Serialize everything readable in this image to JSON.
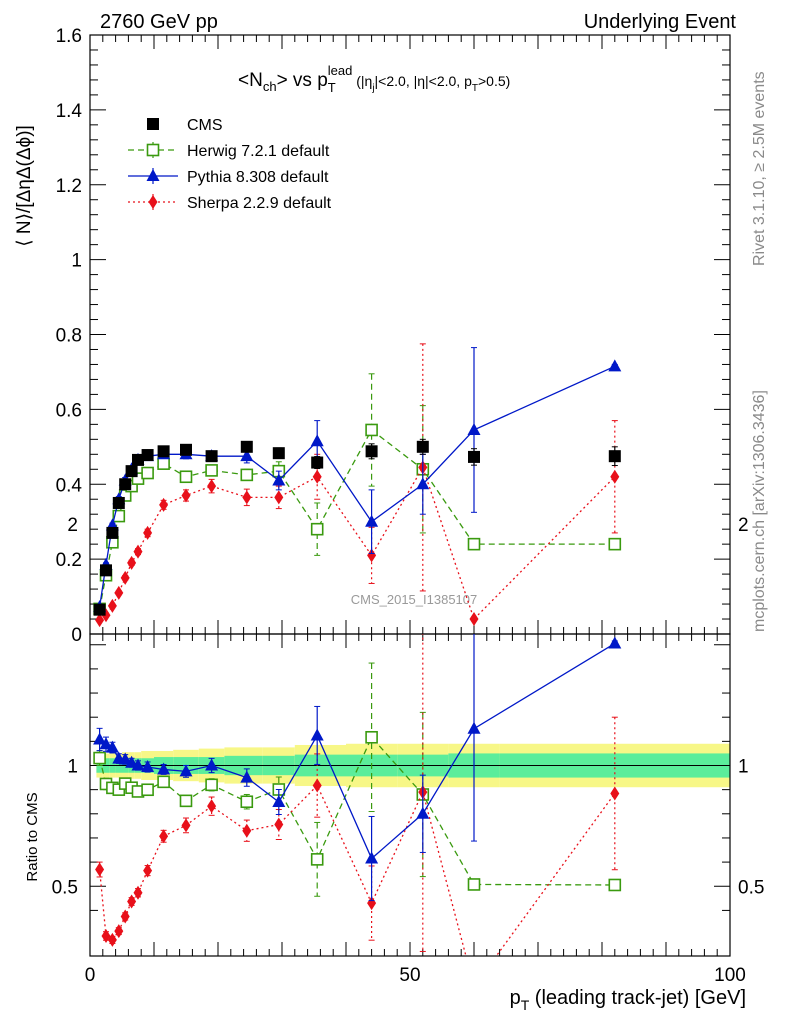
{
  "header": {
    "left": "2760 GeV pp",
    "right": "Underlying Event",
    "side_top": "Rivet 3.1.10, ≥ 2.5M events",
    "side_bottom": "mcplots.cern.ch [arXiv:1306.3436]",
    "watermark": "CMS_2015_I1385107"
  },
  "title": {
    "main": "<N",
    "main_sub": "ch",
    "vs": "> vs p",
    "vs_sub": "T",
    "vs_sup": "lead",
    "cuts_open": " (|η",
    "cuts_sub1": "j",
    "cuts_mid": "|<2.0, |η|<2.0, p",
    "cuts_sub2": "T",
    "cuts_close": ">0.5)"
  },
  "axes": {
    "ylabel_top": "⟨ N⟩/[ΔηΔ(Δϕ)]",
    "ylabel_bottom": "Ratio to CMS",
    "xlabel_main": "p",
    "xlabel_sub": "T",
    "xlabel_rest": " (leading track-jet) [GeV]"
  },
  "chart_data": {
    "type": "scatter",
    "xlim": [
      0,
      100
    ],
    "ylim_top": [
      0,
      1.6
    ],
    "ylim_ratio": [
      0.35,
      2.3
    ],
    "x_ticks": [
      0,
      50,
      100
    ],
    "y_ticks_top": [
      0,
      0.2,
      0.4,
      0.6,
      0.8,
      1,
      1.2,
      1.4,
      1.6
    ],
    "y_ticks_ratio": [
      0.5,
      1,
      2
    ],
    "legend_position": "top-left",
    "series": [
      {
        "name": "CMS",
        "color": "#000000",
        "marker": "square-filled",
        "x": [
          1.5,
          2.5,
          3.5,
          4.5,
          5.5,
          6.5,
          7.5,
          9,
          11.5,
          15,
          19,
          24.5,
          29.5,
          35.5,
          44,
          52,
          60,
          82
        ],
        "y": [
          0.065,
          0.17,
          0.27,
          0.35,
          0.4,
          0.435,
          0.465,
          0.478,
          0.488,
          0.492,
          0.475,
          0.5,
          0.483,
          0.458,
          0.488,
          0.5,
          0.473,
          0.475
        ],
        "yerr": [
          0.003,
          0.005,
          0.006,
          0.007,
          0.007,
          0.008,
          0.008,
          0.008,
          0.009,
          0.01,
          0.01,
          0.012,
          0.014,
          0.016,
          0.02,
          0.02,
          0.022,
          0.025
        ]
      },
      {
        "name": "Herwig 7.2.1 default",
        "color": "#3a9a0f",
        "marker": "square-open",
        "line": "dashed",
        "x": [
          1.5,
          2.5,
          3.5,
          4.5,
          5.5,
          6.5,
          7.5,
          9,
          11.5,
          15,
          19,
          24.5,
          29.5,
          35.5,
          44,
          52,
          60,
          82
        ],
        "y": [
          0.067,
          0.157,
          0.245,
          0.315,
          0.37,
          0.395,
          0.415,
          0.43,
          0.455,
          0.42,
          0.437,
          0.425,
          0.435,
          0.28,
          0.545,
          0.44,
          0.24,
          0.24
        ],
        "yerr": [
          0.002,
          0.004,
          0.005,
          0.006,
          0.006,
          0.007,
          0.008,
          0.008,
          0.01,
          0.01,
          0.012,
          0.015,
          0.025,
          0.07,
          0.15,
          0.17,
          0.005,
          0.005
        ]
      },
      {
        "name": "Pythia 8.308 default",
        "color": "#0018c8",
        "marker": "triangle-filled",
        "line": "solid",
        "x": [
          1.5,
          2.5,
          3.5,
          4.5,
          5.5,
          6.5,
          7.5,
          9,
          11.5,
          15,
          19,
          24.5,
          29.5,
          35.5,
          44,
          52,
          60,
          82
        ],
        "y": [
          0.072,
          0.185,
          0.29,
          0.36,
          0.41,
          0.44,
          0.465,
          0.475,
          0.48,
          0.48,
          0.475,
          0.475,
          0.41,
          0.515,
          0.3,
          0.4,
          0.545,
          0.715
        ],
        "yerr": [
          0.003,
          0.005,
          0.006,
          0.007,
          0.008,
          0.008,
          0.009,
          0.01,
          0.01,
          0.012,
          0.014,
          0.018,
          0.025,
          0.055,
          0.085,
          0.08,
          0.22,
          0.005
        ]
      },
      {
        "name": "Sherpa 2.2.9 default",
        "color": "#e8101a",
        "marker": "diamond-filled",
        "line": "dotted",
        "x": [
          1.5,
          2.5,
          3.5,
          4.5,
          5.5,
          6.5,
          7.5,
          9,
          11.5,
          15,
          19,
          24.5,
          29.5,
          35.5,
          44,
          52,
          60,
          82
        ],
        "y": [
          0.037,
          0.05,
          0.075,
          0.11,
          0.15,
          0.19,
          0.22,
          0.27,
          0.345,
          0.37,
          0.395,
          0.365,
          0.365,
          0.42,
          0.21,
          0.445,
          0.04,
          0.42
        ],
        "yerr": [
          0.002,
          0.003,
          0.004,
          0.005,
          0.006,
          0.007,
          0.008,
          0.01,
          0.012,
          0.015,
          0.018,
          0.022,
          0.03,
          0.06,
          0.075,
          0.33,
          0.005,
          0.15
        ]
      }
    ],
    "ratio_bands": [
      {
        "x0": 1,
        "x1": 2,
        "inner": 0.03,
        "outer": 0.05
      },
      {
        "x0": 2,
        "x1": 3,
        "inner": 0.03,
        "outer": 0.05
      },
      {
        "x0": 3,
        "x1": 4,
        "inner": 0.03,
        "outer": 0.05
      },
      {
        "x0": 4,
        "x1": 5,
        "inner": 0.03,
        "outer": 0.05
      },
      {
        "x0": 5,
        "x1": 6,
        "inner": 0.03,
        "outer": 0.055
      },
      {
        "x0": 6,
        "x1": 7,
        "inner": 0.03,
        "outer": 0.055
      },
      {
        "x0": 7,
        "x1": 8,
        "inner": 0.03,
        "outer": 0.055
      },
      {
        "x0": 8,
        "x1": 10,
        "inner": 0.03,
        "outer": 0.06
      },
      {
        "x0": 10,
        "x1": 13,
        "inner": 0.035,
        "outer": 0.06
      },
      {
        "x0": 13,
        "x1": 17,
        "inner": 0.035,
        "outer": 0.065
      },
      {
        "x0": 17,
        "x1": 21,
        "inner": 0.035,
        "outer": 0.07
      },
      {
        "x0": 21,
        "x1": 27,
        "inner": 0.04,
        "outer": 0.075
      },
      {
        "x0": 27,
        "x1": 32,
        "inner": 0.04,
        "outer": 0.075
      },
      {
        "x0": 32,
        "x1": 40,
        "inner": 0.045,
        "outer": 0.085
      },
      {
        "x0": 40,
        "x1": 48,
        "inner": 0.045,
        "outer": 0.09
      },
      {
        "x0": 48,
        "x1": 56,
        "inner": 0.045,
        "outer": 0.09
      },
      {
        "x0": 56,
        "x1": 64,
        "inner": 0.05,
        "outer": 0.09
      },
      {
        "x0": 64,
        "x1": 100,
        "inner": 0.05,
        "outer": 0.09
      }
    ],
    "ratio_colors": {
      "inner": "#5bed9b",
      "outer": "#f7f787"
    }
  }
}
